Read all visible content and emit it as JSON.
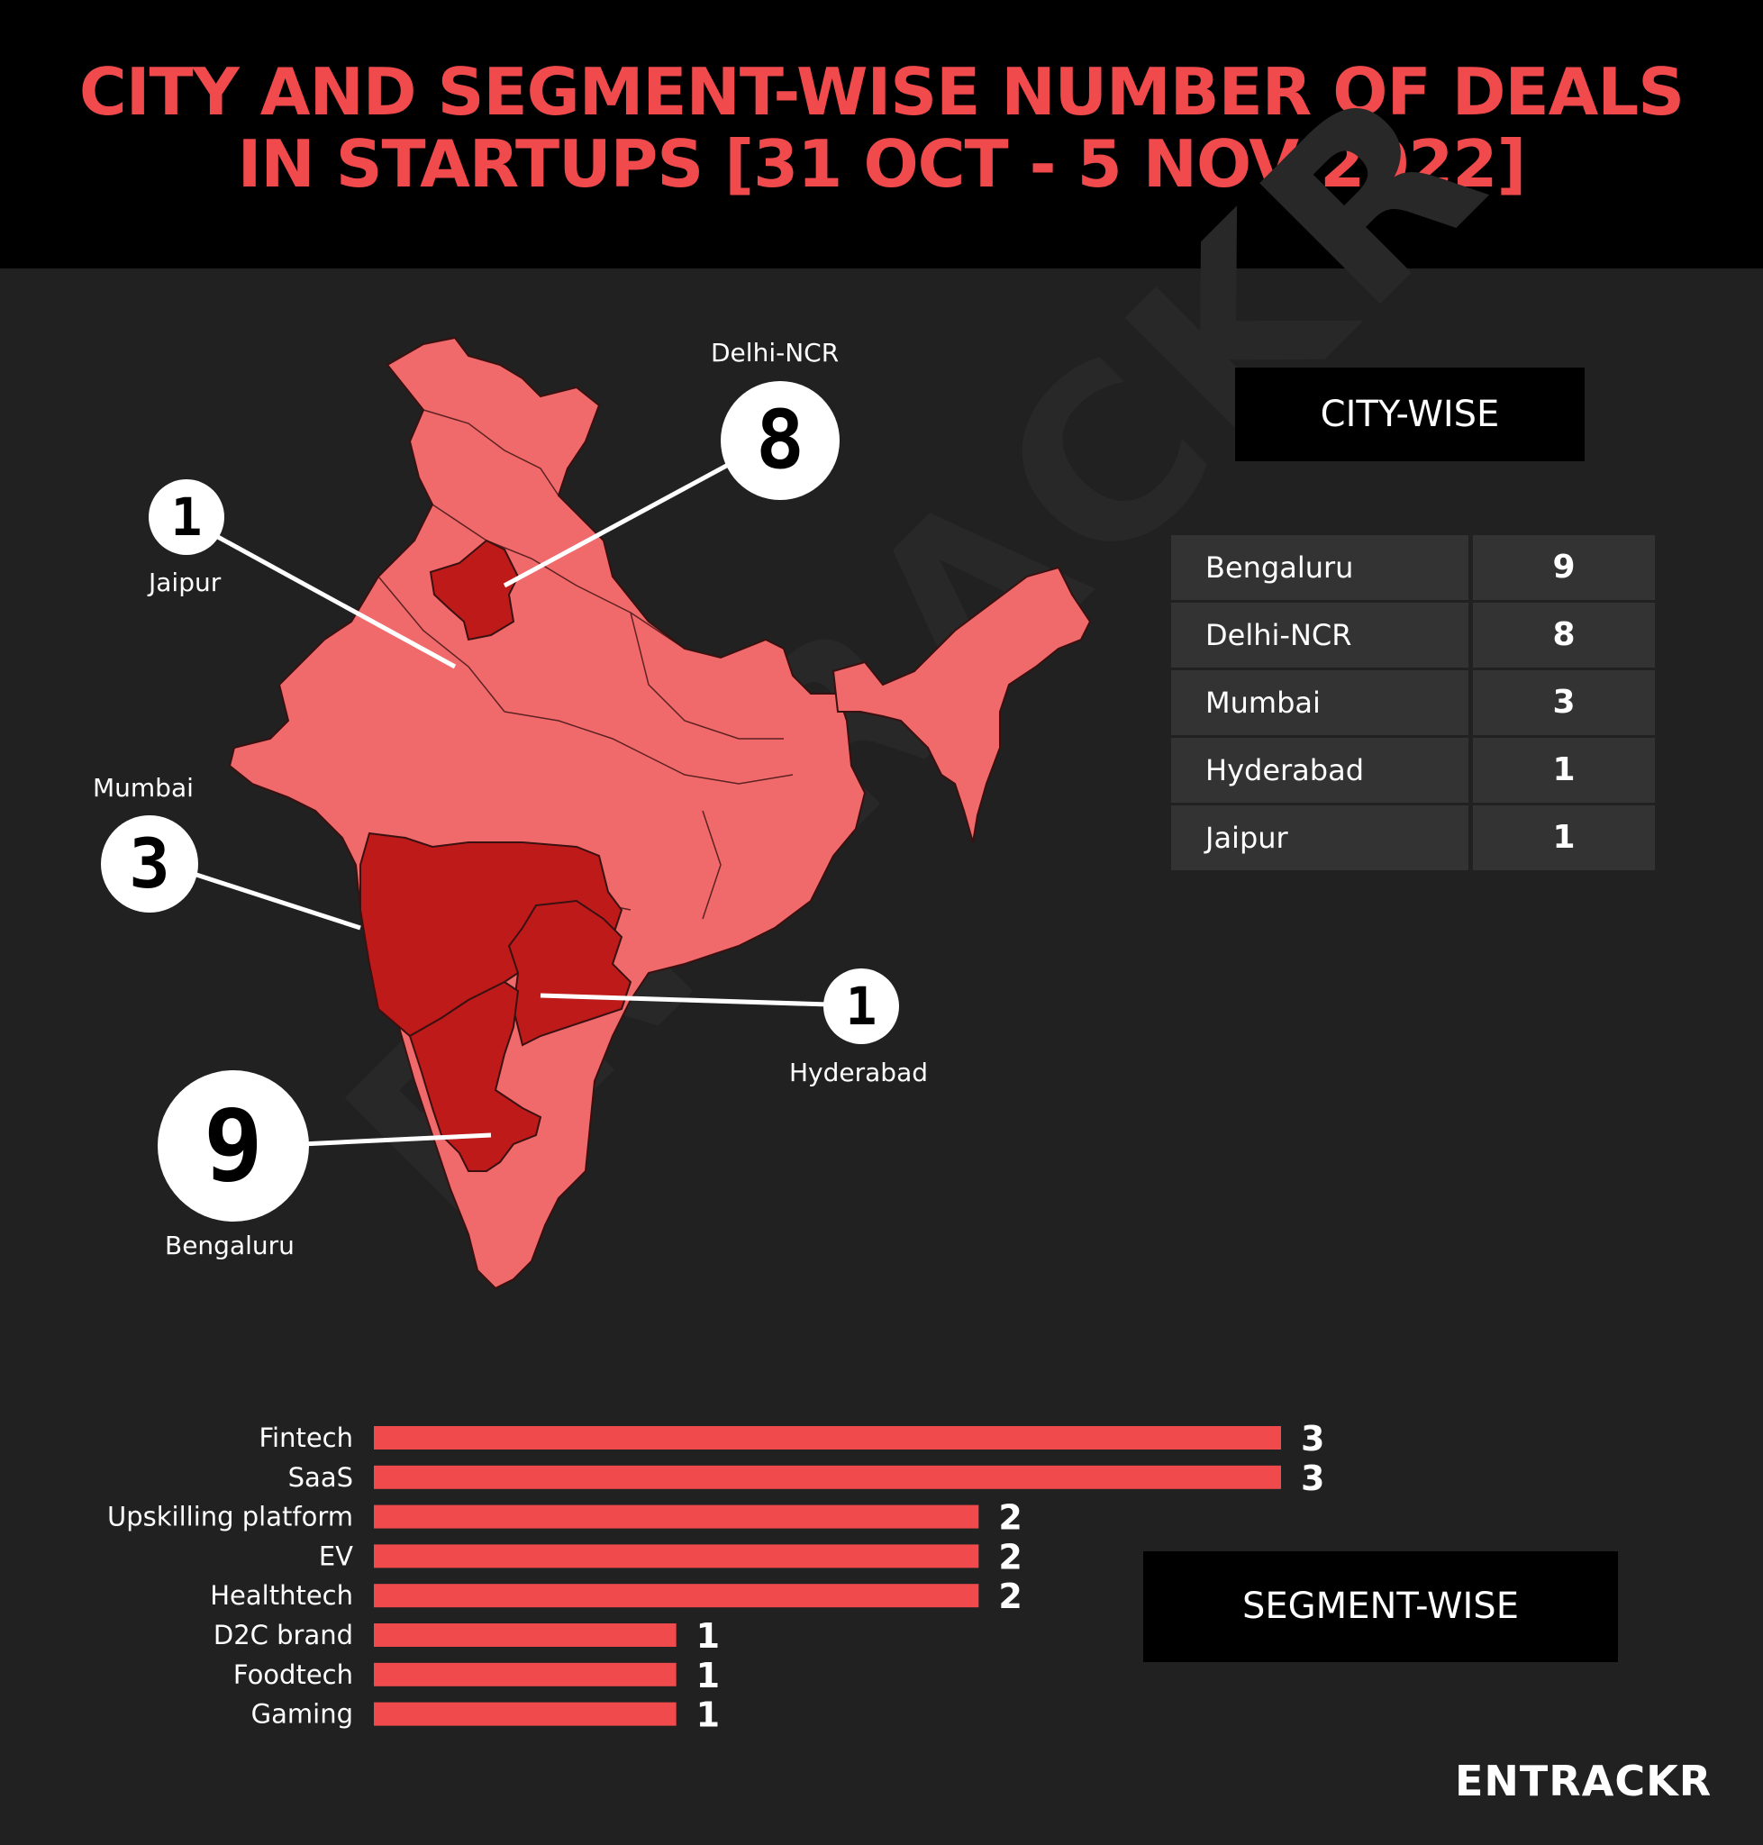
{
  "title": {
    "line1": "CITY AND SEGMENT-WISE NUMBER OF DEALS",
    "line2": "IN STARTUPS [31 OCT - 5 NOV 2022]"
  },
  "map_callouts": [
    {
      "city": "Delhi-NCR",
      "value": "8"
    },
    {
      "city": "Jaipur",
      "value": "1"
    },
    {
      "city": "Mumbai",
      "value": "3"
    },
    {
      "city": "Hyderabad",
      "value": "1"
    },
    {
      "city": "Bengaluru",
      "value": "9"
    }
  ],
  "city_panel": {
    "title": "CITY-WISE"
  },
  "segment_panel": {
    "title": "SEGMENT-WISE"
  },
  "colors": {
    "map_base": "#f06a6b",
    "map_highlight": "#bf1a1a",
    "bar": "#f04a4c"
  },
  "chart_data": [
    {
      "type": "table",
      "title": "CITY-WISE",
      "rows": [
        {
          "city": "Bengaluru",
          "deals": 9
        },
        {
          "city": "Delhi-NCR",
          "deals": 8
        },
        {
          "city": "Mumbai",
          "deals": 3
        },
        {
          "city": "Hyderabad",
          "deals": 1
        },
        {
          "city": "Jaipur",
          "deals": 1
        }
      ]
    },
    {
      "type": "bar",
      "orientation": "horizontal",
      "title": "SEGMENT-WISE",
      "categories": [
        "Fintech",
        "SaaS",
        "Upskilling platform",
        "EV",
        "Healthtech",
        "D2C brand",
        "Foodtech",
        "Gaming"
      ],
      "values": [
        3,
        3,
        2,
        2,
        2,
        1,
        1,
        1
      ],
      "xlim": [
        0,
        3
      ],
      "grid": false
    }
  ],
  "brand": "ENTRACKR",
  "watermark": "ENTRACKR"
}
